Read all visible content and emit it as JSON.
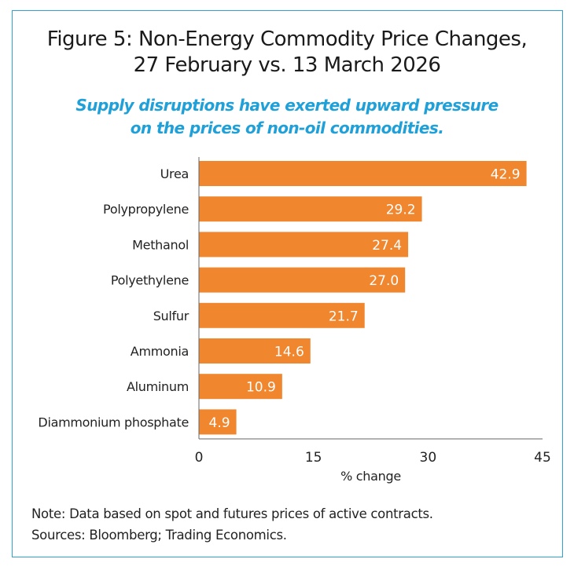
{
  "title_line1": "Figure 5: Non-Energy Commodity Price Changes,",
  "title_line2": "27 February vs. 13 March 2026",
  "subtitle_line1": "Supply disruptions have exerted upward pressure",
  "subtitle_line2": "on the prices of non-oil commodities.",
  "note": "Note: Data based on spot and futures prices of active contracts.",
  "sources": "Sources: Bloomberg; Trading Economics.",
  "colors": {
    "bar": "#f0862e",
    "border": "#2ea3d3",
    "subtitle": "#1fa0d8"
  },
  "chart_data": {
    "type": "bar",
    "orientation": "horizontal",
    "categories": [
      "Urea",
      "Polypropylene",
      "Methanol",
      "Polyethylene",
      "Sulfur",
      "Ammonia",
      "Aluminum",
      "Diammonium phosphate"
    ],
    "values": [
      42.9,
      29.2,
      27.4,
      27.0,
      21.7,
      14.6,
      10.9,
      4.9
    ],
    "value_labels": [
      "42.9",
      "29.2",
      "27.4",
      "27.0",
      "21.7",
      "14.6",
      "10.9",
      "4.9"
    ],
    "xlabel": "% change",
    "xlim": [
      0,
      45
    ],
    "xticks": [
      "0",
      "15",
      "30",
      "45"
    ],
    "grid": false
  }
}
